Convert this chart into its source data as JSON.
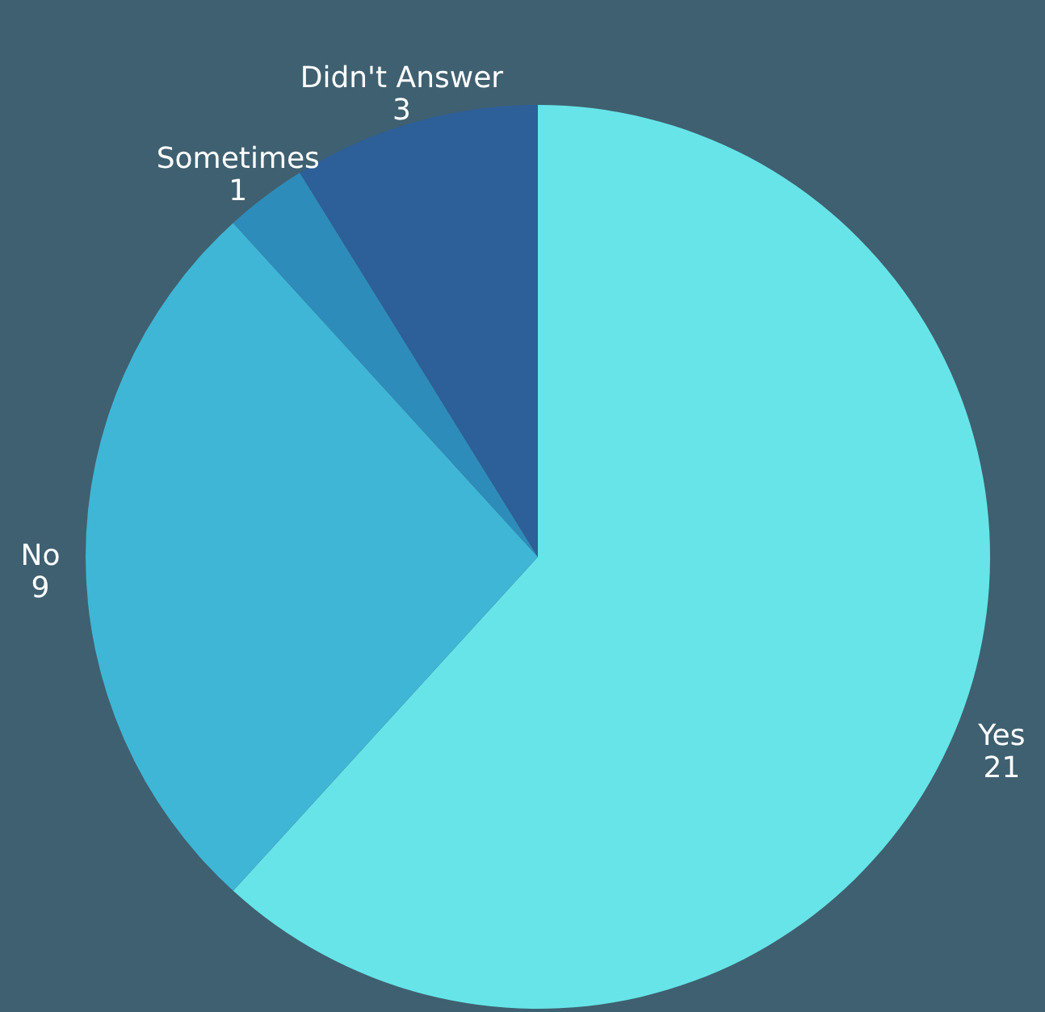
{
  "chart_data": {
    "type": "pie",
    "categories": [
      "Yes",
      "No",
      "Sometimes",
      "Didn't Answer"
    ],
    "values": [
      21,
      9,
      1,
      3
    ],
    "colors": [
      "#67e4e8",
      "#3fb6d6",
      "#2e8cba",
      "#2d5f98"
    ],
    "data_labels": true
  }
}
